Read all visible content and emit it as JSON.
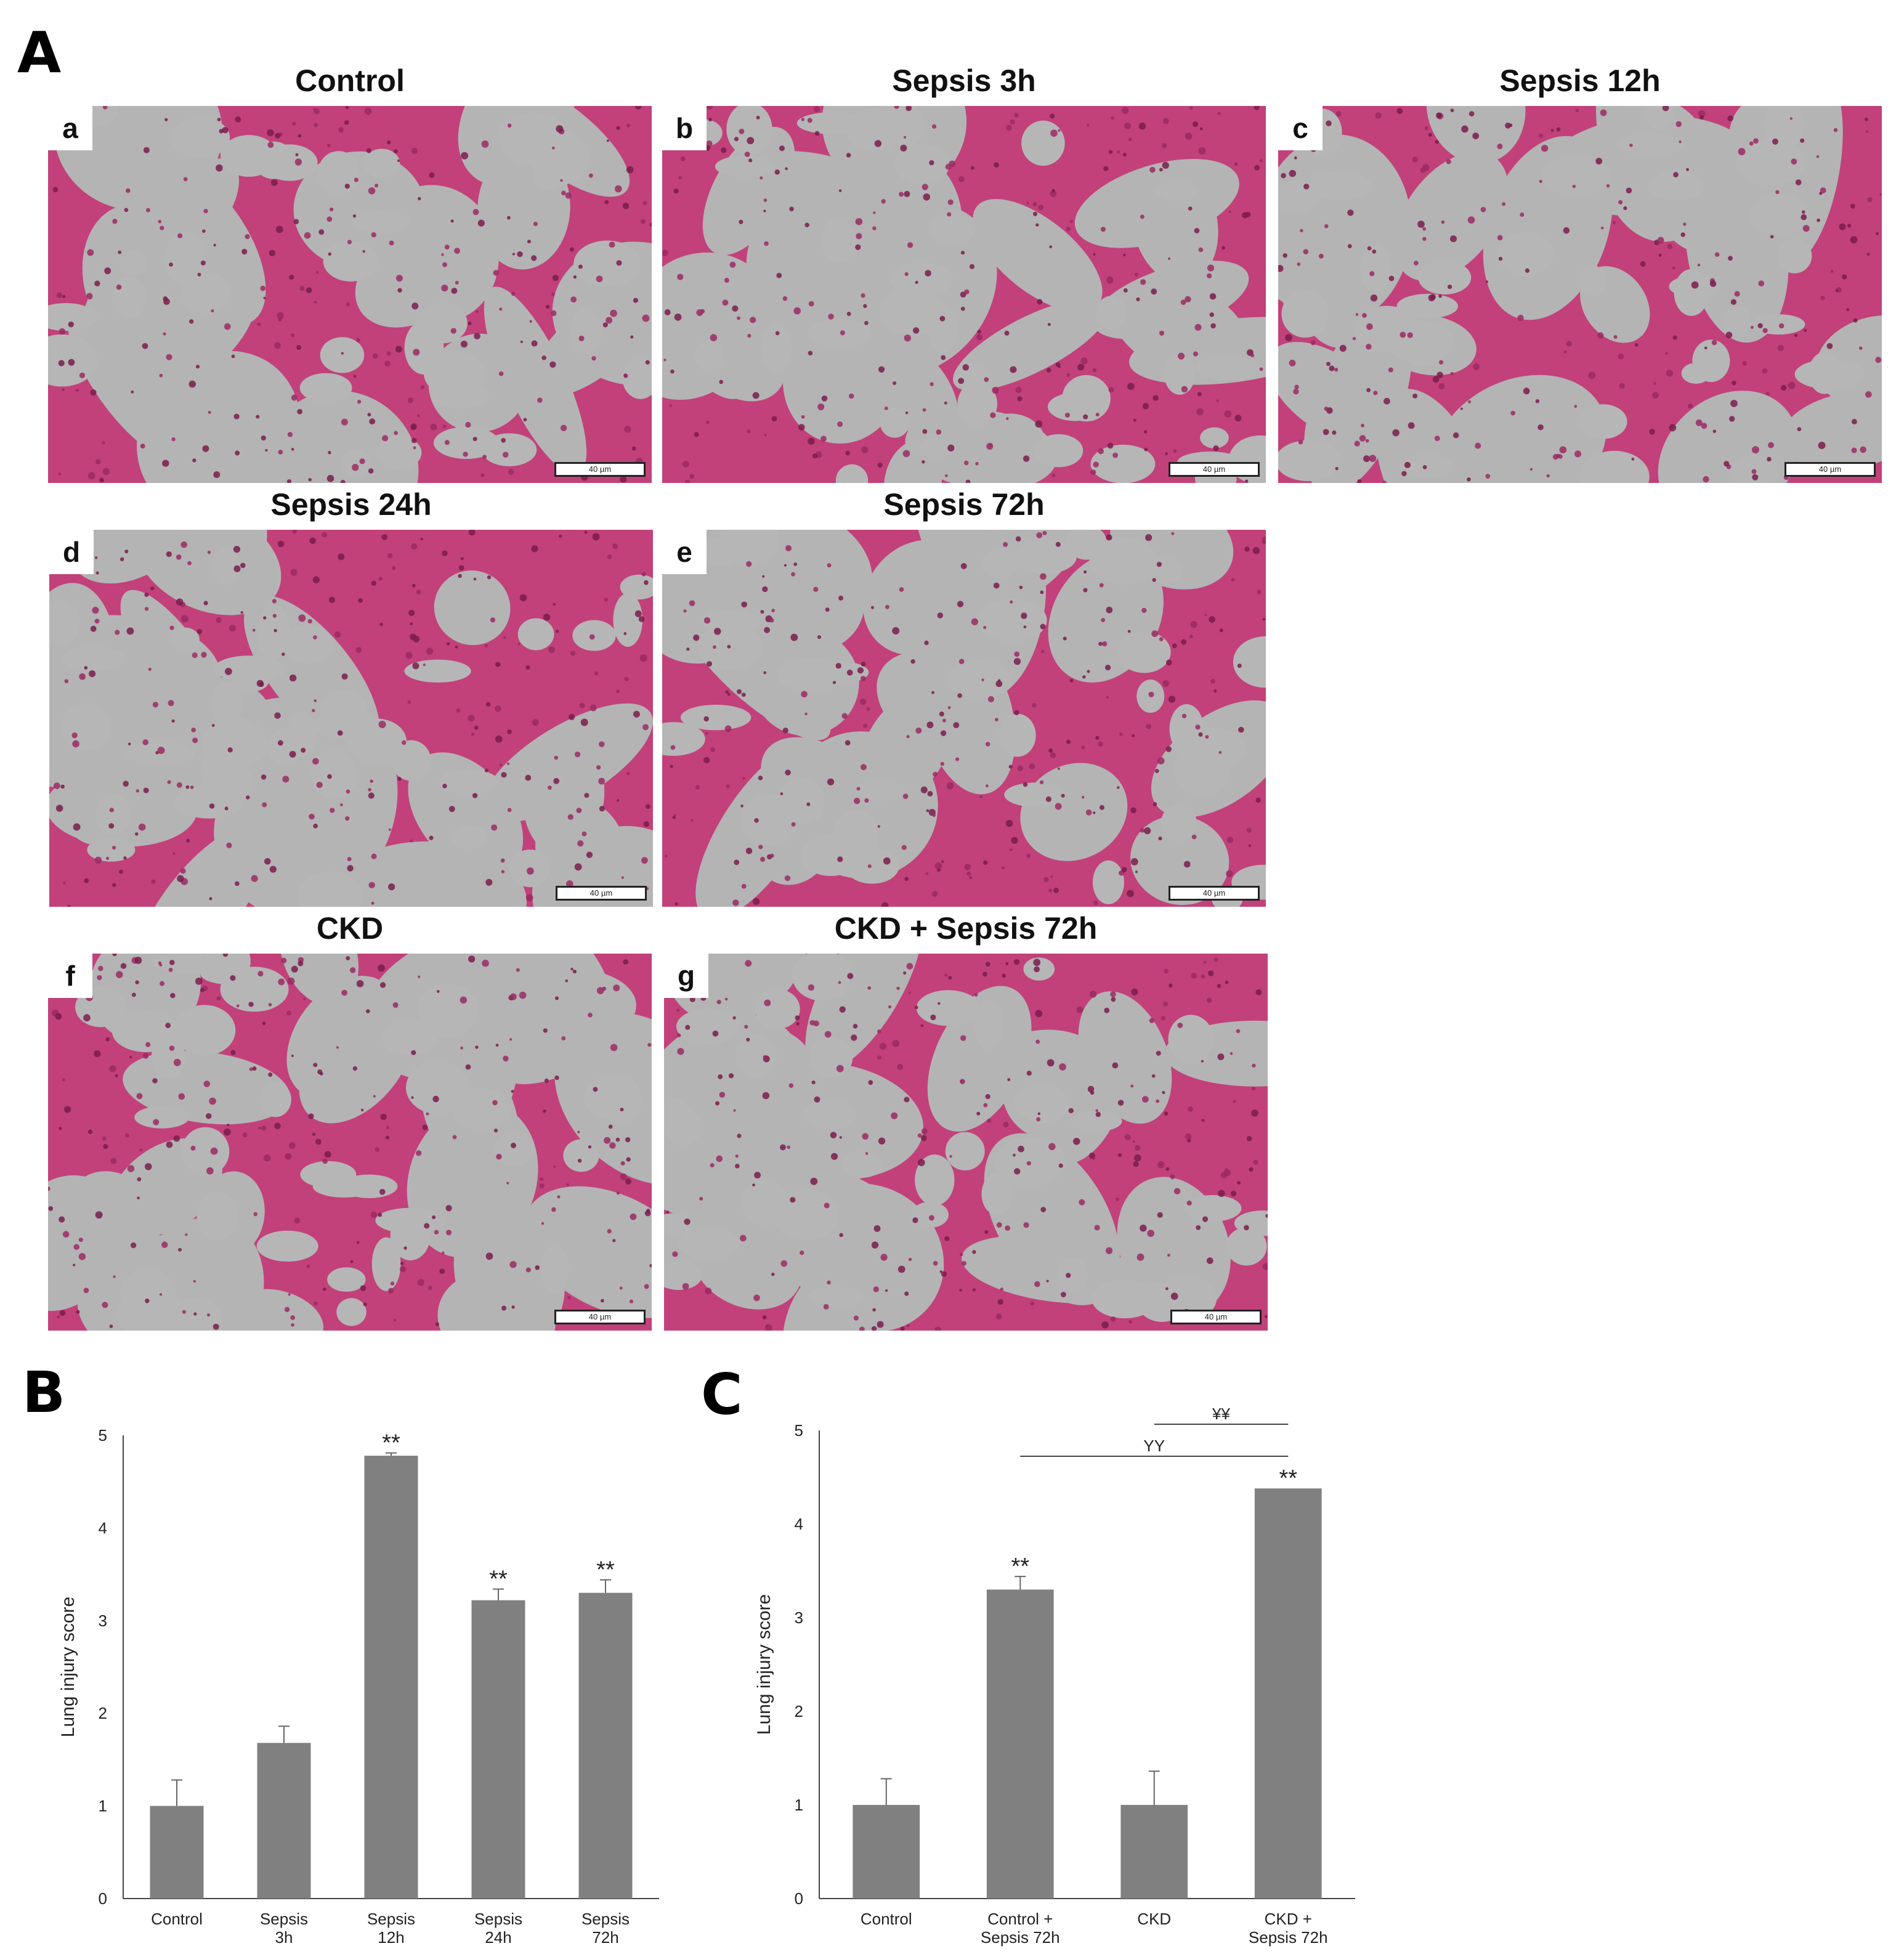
{
  "figure": {
    "panel_labels": {
      "A": "A",
      "B": "B",
      "C": "C"
    },
    "micrographs": [
      {
        "letter": "a",
        "title": "Control",
        "scale": "40 µm"
      },
      {
        "letter": "b",
        "title": "Sepsis 3h",
        "scale": "40 µm"
      },
      {
        "letter": "c",
        "title": "Sepsis 12h",
        "scale": "40 µm"
      },
      {
        "letter": "d",
        "title": "Sepsis 24h",
        "scale": "40 µm"
      },
      {
        "letter": "e",
        "title": "Sepsis 72h",
        "scale": "40 µm"
      },
      {
        "letter": "f",
        "title": "CKD",
        "scale": "40 µm"
      },
      {
        "letter": "g",
        "title": "CKD + Sepsis 72h",
        "scale": "40 µm"
      }
    ]
  },
  "chart_data": [
    {
      "type": "bar",
      "panel": "B",
      "categories": [
        [
          "Control"
        ],
        [
          "Sepsis",
          "3h"
        ],
        [
          "Sepsis",
          "12h"
        ],
        [
          "Sepsis",
          "24h"
        ],
        [
          "Sepsis",
          "72h"
        ]
      ],
      "values": [
        1.0,
        1.68,
        4.78,
        3.22,
        3.3
      ],
      "errors": [
        0.28,
        0.18,
        0.03,
        0.12,
        0.14
      ],
      "annotations": [
        "",
        "",
        "**",
        "**",
        "**"
      ],
      "ylabel": "Lung injury score",
      "ylim": [
        0,
        5
      ],
      "yticks": [
        0,
        1,
        2,
        3,
        4,
        5
      ],
      "bar_color": "#808080",
      "grid": false
    },
    {
      "type": "bar",
      "panel": "C",
      "categories": [
        [
          "Control"
        ],
        [
          "Control +",
          "Sepsis 72h"
        ],
        [
          "CKD"
        ],
        [
          "CKD +",
          "Sepsis 72h"
        ]
      ],
      "values": [
        1.0,
        3.3,
        1.0,
        4.38
      ],
      "errors": [
        0.28,
        0.14,
        0.36,
        0.0
      ],
      "annotations": [
        "",
        "**",
        "",
        "**"
      ],
      "comparisons": [
        {
          "from": 1,
          "to": 3,
          "label": "YY"
        },
        {
          "from": 2,
          "to": 3,
          "label": "¥¥"
        }
      ],
      "ylabel": "Lung injury score",
      "ylim": [
        0,
        5
      ],
      "yticks": [
        0,
        1,
        2,
        3,
        4,
        5
      ],
      "bar_color": "#808080",
      "grid": false
    }
  ]
}
